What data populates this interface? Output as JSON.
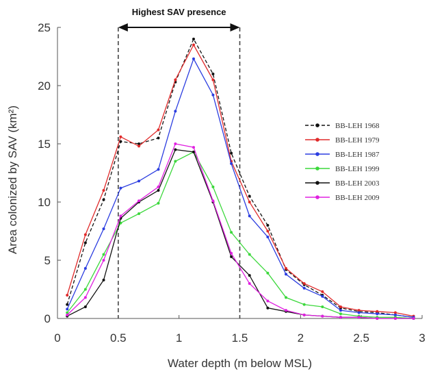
{
  "chart_data": {
    "type": "line",
    "title": "",
    "xlabel": "Water depth (m below MSL)",
    "ylabel": "Area colonized by SAV (km²)",
    "xlim": [
      0,
      3
    ],
    "ylim": [
      0,
      25
    ],
    "x_ticks": [
      "0",
      "0.5",
      "1",
      "1.5",
      "2",
      "2.5",
      "3"
    ],
    "y_ticks": [
      "0",
      "5",
      "10",
      "15",
      "20",
      "25"
    ],
    "grid": false,
    "legend_position": "right",
    "annotation": {
      "text": "Highest SAV presence",
      "x_start": 0.5,
      "x_end": 1.5
    },
    "x": [
      0.08,
      0.23,
      0.38,
      0.52,
      0.67,
      0.83,
      0.97,
      1.12,
      1.28,
      1.43,
      1.58,
      1.73,
      1.88,
      2.03,
      2.18,
      2.33,
      2.48,
      2.63,
      2.78,
      2.93
    ],
    "series": [
      {
        "name": "BB-LEH 1968",
        "color": "#111111",
        "dashed": true,
        "values": [
          1.2,
          6.5,
          10.2,
          15.2,
          15.0,
          15.5,
          20.3,
          24.0,
          21.0,
          14.2,
          10.5,
          8.0,
          4.2,
          2.9,
          2.0,
          0.9,
          0.6,
          0.5,
          0.3,
          0.1
        ]
      },
      {
        "name": "BB-LEH 1979",
        "color": "#e02a2a",
        "dashed": false,
        "values": [
          2.0,
          7.2,
          11.0,
          15.6,
          14.8,
          16.2,
          20.5,
          23.5,
          20.5,
          13.5,
          10.0,
          7.5,
          4.3,
          3.0,
          2.3,
          1.0,
          0.7,
          0.6,
          0.5,
          0.2
        ]
      },
      {
        "name": "BB-LEH 1987",
        "color": "#2b3de0",
        "dashed": false,
        "values": [
          0.8,
          4.3,
          7.7,
          11.2,
          11.8,
          12.8,
          17.8,
          22.3,
          19.2,
          13.3,
          8.8,
          7.0,
          3.8,
          2.6,
          1.9,
          0.7,
          0.5,
          0.4,
          0.3,
          0.1
        ]
      },
      {
        "name": "BB-LEH 1999",
        "color": "#3cd83c",
        "dashed": false,
        "values": [
          0.5,
          2.5,
          5.5,
          8.2,
          9.0,
          9.9,
          13.5,
          14.3,
          11.3,
          7.4,
          5.5,
          3.9,
          1.8,
          1.2,
          1.0,
          0.4,
          0.2,
          0.1,
          0.1,
          0.0
        ]
      },
      {
        "name": "BB-LEH 2003",
        "color": "#111111",
        "dashed": false,
        "values": [
          0.2,
          1.0,
          3.3,
          8.6,
          10.0,
          11.0,
          14.5,
          14.3,
          10.0,
          5.3,
          3.7,
          0.9,
          0.6,
          0.3,
          0.2,
          0.1,
          0.1,
          0.0,
          0.0,
          0.0
        ]
      },
      {
        "name": "BB-LEH 2009",
        "color": "#e020e0",
        "dashed": false,
        "values": [
          0.3,
          1.8,
          5.0,
          8.8,
          10.1,
          11.3,
          15.0,
          14.7,
          10.1,
          5.6,
          3.0,
          1.5,
          0.7,
          0.3,
          0.2,
          0.1,
          0.1,
          0.0,
          0.0,
          0.0
        ]
      }
    ]
  }
}
